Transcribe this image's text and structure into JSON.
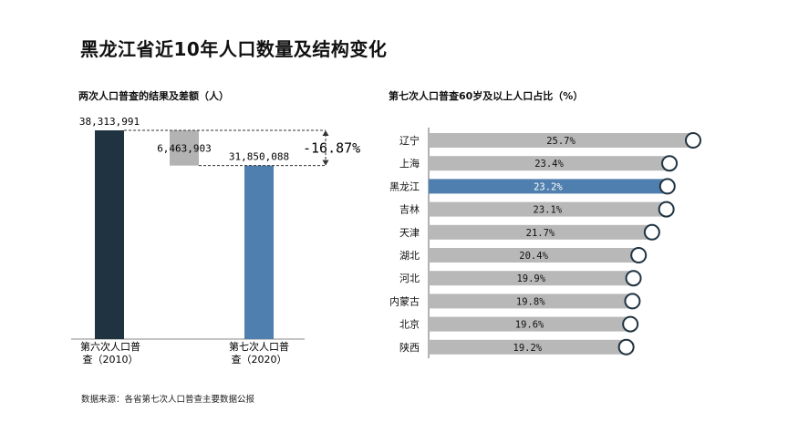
{
  "title": "黑龙江省近10年人口数量及结构变化",
  "source": "数据来源：各省第七次人口普查主要数据公报",
  "chart_data": [
    {
      "type": "bar",
      "subtitle": "两次人口普查的结果及差额（人）",
      "categories": [
        "第六次人口普查（2010）",
        "第七次人口普查（2020）"
      ],
      "category_lines": [
        [
          "第六次人口普",
          "查（2010）"
        ],
        [
          "第七次人口普",
          "查（2020）"
        ]
      ],
      "values": [
        38313991,
        31850088
      ],
      "value_labels": [
        "38,313,991",
        "31,850,088"
      ],
      "difference": 6463903,
      "difference_label": "6,463,903",
      "change_label": "-16.87%",
      "colors": {
        "bar_2010": "#1f3341",
        "bar_2020": "#4f7fae",
        "difference": "#b3b3b3"
      }
    },
    {
      "type": "bar",
      "orientation": "horizontal",
      "subtitle": "第七次人口普查60岁及以上人口占比（%）",
      "categories": [
        "辽宁",
        "上海",
        "黑龙江",
        "吉林",
        "天津",
        "湖北",
        "河北",
        "内蒙古",
        "北京",
        "陕西"
      ],
      "values": [
        25.7,
        23.4,
        23.2,
        23.1,
        21.7,
        20.4,
        19.9,
        19.8,
        19.6,
        19.2
      ],
      "value_labels": [
        "25.7%",
        "23.4%",
        "23.2%",
        "23.1%",
        "21.7%",
        "20.4%",
        "19.9%",
        "19.8%",
        "19.6%",
        "19.2%"
      ],
      "highlight": "黑龙江",
      "colors": {
        "bar": "#b8b8b8",
        "highlight": "#4f7fae"
      }
    }
  ]
}
